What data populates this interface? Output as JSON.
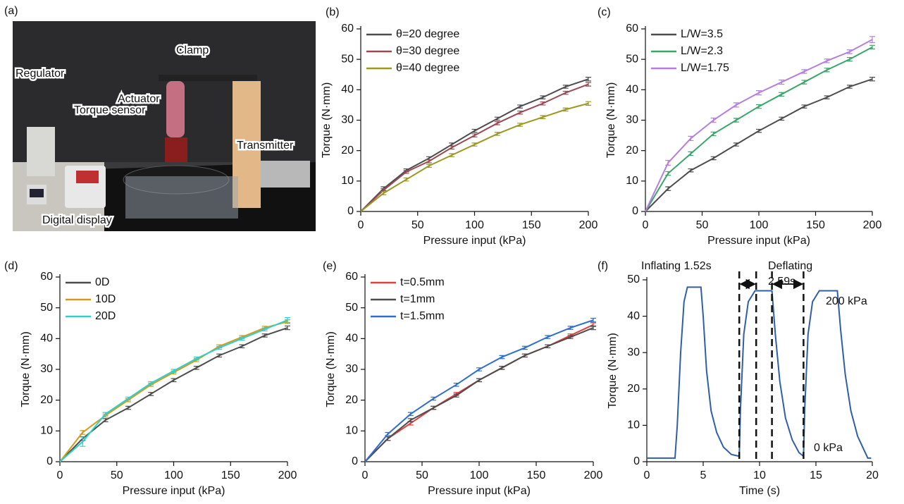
{
  "photo": {
    "panel_label": "(a)",
    "labels": [
      "Regulator",
      "Actuator",
      "Clamp",
      "Torque sensor",
      "Transmitter",
      "Digital display"
    ]
  },
  "chart_data": [
    {
      "type": "line",
      "panel_label": "(b)",
      "x_label": "Pressure input (kPa)",
      "y_label": "Torque (N·mm)",
      "x": [
        0,
        20,
        40,
        60,
        80,
        100,
        120,
        140,
        160,
        180,
        200
      ],
      "xlim": [
        0,
        200
      ],
      "xticks": [
        0,
        50,
        100,
        150,
        200
      ],
      "ylim": [
        0,
        60
      ],
      "yticks": [
        0,
        10,
        20,
        30,
        40,
        50,
        60
      ],
      "legend": "upper left",
      "series": [
        {
          "name": "θ=20 degree",
          "color": "#4d4d4d",
          "values": [
            0,
            7.5,
            13.5,
            17.5,
            22,
            26.5,
            30.5,
            34.5,
            37.5,
            41,
            43.5
          ],
          "errors": [
            0,
            0.6,
            0.5,
            0.5,
            0.5,
            0.5,
            0.5,
            0.5,
            0.5,
            0.5,
            0.6
          ]
        },
        {
          "name": "θ=30 degree",
          "color": "#9a4a55",
          "values": [
            0,
            7,
            13,
            16.5,
            21,
            25,
            29,
            32.5,
            35.5,
            39,
            41.8
          ],
          "errors": [
            0,
            0.5,
            0.5,
            0.5,
            0.5,
            0.5,
            0.5,
            0.5,
            0.5,
            0.5,
            0.6
          ]
        },
        {
          "name": "θ=40 degree",
          "color": "#9a9a20",
          "values": [
            0,
            6,
            10.5,
            15,
            18.5,
            22,
            25.5,
            28.5,
            31,
            33.5,
            35.5
          ],
          "errors": [
            0,
            0.5,
            0.5,
            0.5,
            0.5,
            0.5,
            0.5,
            0.5,
            0.5,
            0.5,
            0.6
          ]
        }
      ]
    },
    {
      "type": "line",
      "panel_label": "(c)",
      "x_label": "Pressure input (kPa)",
      "y_label": "Torque (N·mm)",
      "x": [
        0,
        20,
        40,
        60,
        80,
        100,
        120,
        140,
        160,
        180,
        200
      ],
      "xlim": [
        0,
        200
      ],
      "xticks": [
        0,
        50,
        100,
        150,
        200
      ],
      "ylim": [
        0,
        60
      ],
      "yticks": [
        0,
        10,
        20,
        30,
        40,
        50,
        60
      ],
      "legend": "upper left",
      "series": [
        {
          "name": "L/W=3.5",
          "color": "#4d4d4d",
          "values": [
            0,
            7.5,
            13.5,
            17.5,
            22,
            26.5,
            30.5,
            34.5,
            37.5,
            41,
            43.5
          ],
          "errors": [
            0,
            0.6,
            0.5,
            0.5,
            0.5,
            0.5,
            0.5,
            0.5,
            0.5,
            0.5,
            0.6
          ]
        },
        {
          "name": "L/W=2.3",
          "color": "#3aa66a",
          "values": [
            0,
            12.5,
            19,
            25.5,
            30,
            34.5,
            38.5,
            42.5,
            46.5,
            50,
            54
          ],
          "errors": [
            0,
            0.6,
            0.6,
            0.6,
            0.6,
            0.6,
            0.6,
            0.6,
            0.6,
            0.6,
            0.6
          ]
        },
        {
          "name": "L/W=1.75",
          "color": "#b57ee0",
          "values": [
            0,
            16,
            24,
            30,
            35,
            39,
            42.5,
            46,
            49.5,
            52.5,
            56.5
          ],
          "errors": [
            0,
            0.8,
            0.7,
            0.7,
            0.7,
            0.7,
            0.7,
            0.6,
            0.6,
            0.6,
            1
          ]
        }
      ]
    },
    {
      "type": "line",
      "panel_label": "(d)",
      "x_label": "Pressure input (kPa)",
      "y_label": "Torque (N·mm)",
      "x": [
        0,
        20,
        40,
        60,
        80,
        100,
        120,
        140,
        160,
        180,
        200
      ],
      "xlim": [
        0,
        200
      ],
      "xticks": [
        0,
        50,
        100,
        150,
        200
      ],
      "ylim": [
        0,
        60
      ],
      "yticks": [
        0,
        10,
        20,
        30,
        40,
        50,
        60
      ],
      "legend": "upper left",
      "series": [
        {
          "name": "0D",
          "color": "#4d4d4d",
          "values": [
            0,
            7.5,
            13.5,
            17.5,
            22,
            26.5,
            30.5,
            34.5,
            37.5,
            41,
            43.5
          ],
          "errors": [
            0,
            0.6,
            0.5,
            0.5,
            0.5,
            0.5,
            0.5,
            0.5,
            0.5,
            0.5,
            0.6
          ]
        },
        {
          "name": "10D",
          "color": "#d49a1a",
          "values": [
            0,
            9.5,
            15,
            20,
            25,
            29,
            33,
            37.5,
            40.5,
            43.5,
            45.5
          ],
          "errors": [
            0,
            0.6,
            0.5,
            0.5,
            0.5,
            0.5,
            0.5,
            0.5,
            0.5,
            0.5,
            0.6
          ]
        },
        {
          "name": "20D",
          "color": "#2ecfcf",
          "values": [
            0,
            6.5,
            15.5,
            20.5,
            25.5,
            29.5,
            33.5,
            37,
            40,
            43,
            46
          ],
          "errors": [
            0,
            1.5,
            0.5,
            0.5,
            0.5,
            0.5,
            0.5,
            0.5,
            0.5,
            0.5,
            0.8
          ]
        }
      ]
    },
    {
      "type": "line",
      "panel_label": "(e)",
      "x_label": "Pressure input (kPa)",
      "y_label": "Torque (N·mm)",
      "x": [
        0,
        20,
        40,
        60,
        80,
        100,
        120,
        140,
        160,
        180,
        200
      ],
      "xlim": [
        0,
        200
      ],
      "xticks": [
        0,
        50,
        100,
        150,
        200
      ],
      "ylim": [
        0,
        60
      ],
      "yticks": [
        0,
        10,
        20,
        30,
        40,
        50,
        60
      ],
      "legend": "upper left",
      "series": [
        {
          "name": "t=0.5mm",
          "color": "#e04040",
          "values": [
            0,
            7.5,
            12.5,
            17.5,
            22,
            26.5,
            30.5,
            34.5,
            37.5,
            41,
            44.5
          ],
          "errors": [
            0,
            0.6,
            0.6,
            0.5,
            0.5,
            0.5,
            0.5,
            0.5,
            0.5,
            0.5,
            0.6
          ]
        },
        {
          "name": "t=1mm",
          "color": "#4d4d4d",
          "values": [
            0,
            7.5,
            13.5,
            17.5,
            21.5,
            26.5,
            30.5,
            34.5,
            37.5,
            40.5,
            43.5
          ],
          "errors": [
            0,
            0.6,
            0.5,
            0.5,
            0.5,
            0.5,
            0.5,
            0.5,
            0.5,
            0.5,
            0.6
          ]
        },
        {
          "name": "t=1.5mm",
          "color": "#2e6fd0",
          "values": [
            0,
            9,
            15.5,
            20.5,
            25,
            30,
            34,
            37,
            40.5,
            43.5,
            46
          ],
          "errors": [
            0,
            0.5,
            0.5,
            0.5,
            0.5,
            0.5,
            0.5,
            0.5,
            0.5,
            0.5,
            0.6
          ]
        }
      ]
    },
    {
      "type": "line",
      "panel_label": "(f)",
      "x_label": "Time (s)",
      "y_label": "Torque (N·mm)",
      "x": [
        0,
        2.5,
        2.7,
        3.0,
        3.3,
        3.6,
        4.8,
        5.0,
        5.3,
        5.7,
        6.2,
        6.8,
        7.5,
        8.2,
        8.3,
        8.6,
        9.0,
        9.6,
        11.1,
        11.4,
        11.8,
        12.3,
        12.9,
        13.5,
        13.9,
        14.0,
        14.3,
        14.7,
        15.3,
        16.9,
        17.2,
        17.6,
        18.1,
        18.7,
        19.3,
        19.6,
        19.9
      ],
      "xlim": [
        0,
        20
      ],
      "xticks": [
        0,
        5,
        10,
        15,
        20
      ],
      "ylim": [
        0,
        50
      ],
      "yticks": [
        0,
        10,
        20,
        30,
        40,
        50
      ],
      "series": [
        {
          "color": "#2e5fa8",
          "values": [
            1,
            1,
            10,
            30,
            44,
            48,
            48,
            40,
            25,
            14,
            8,
            4,
            2,
            1.5,
            14,
            35,
            44,
            47,
            47,
            35,
            22,
            12,
            6,
            2.5,
            1.5,
            14,
            35,
            44,
            47,
            47,
            36,
            24,
            14,
            7,
            3,
            1,
            1
          ]
        }
      ],
      "vlines": [
        8.2,
        9.7,
        11.1,
        13.9
      ],
      "annotations": [
        "Inflating 1.52s",
        "Deflating",
        "2.59s",
        "200 kPa",
        "0 kPa"
      ]
    }
  ]
}
